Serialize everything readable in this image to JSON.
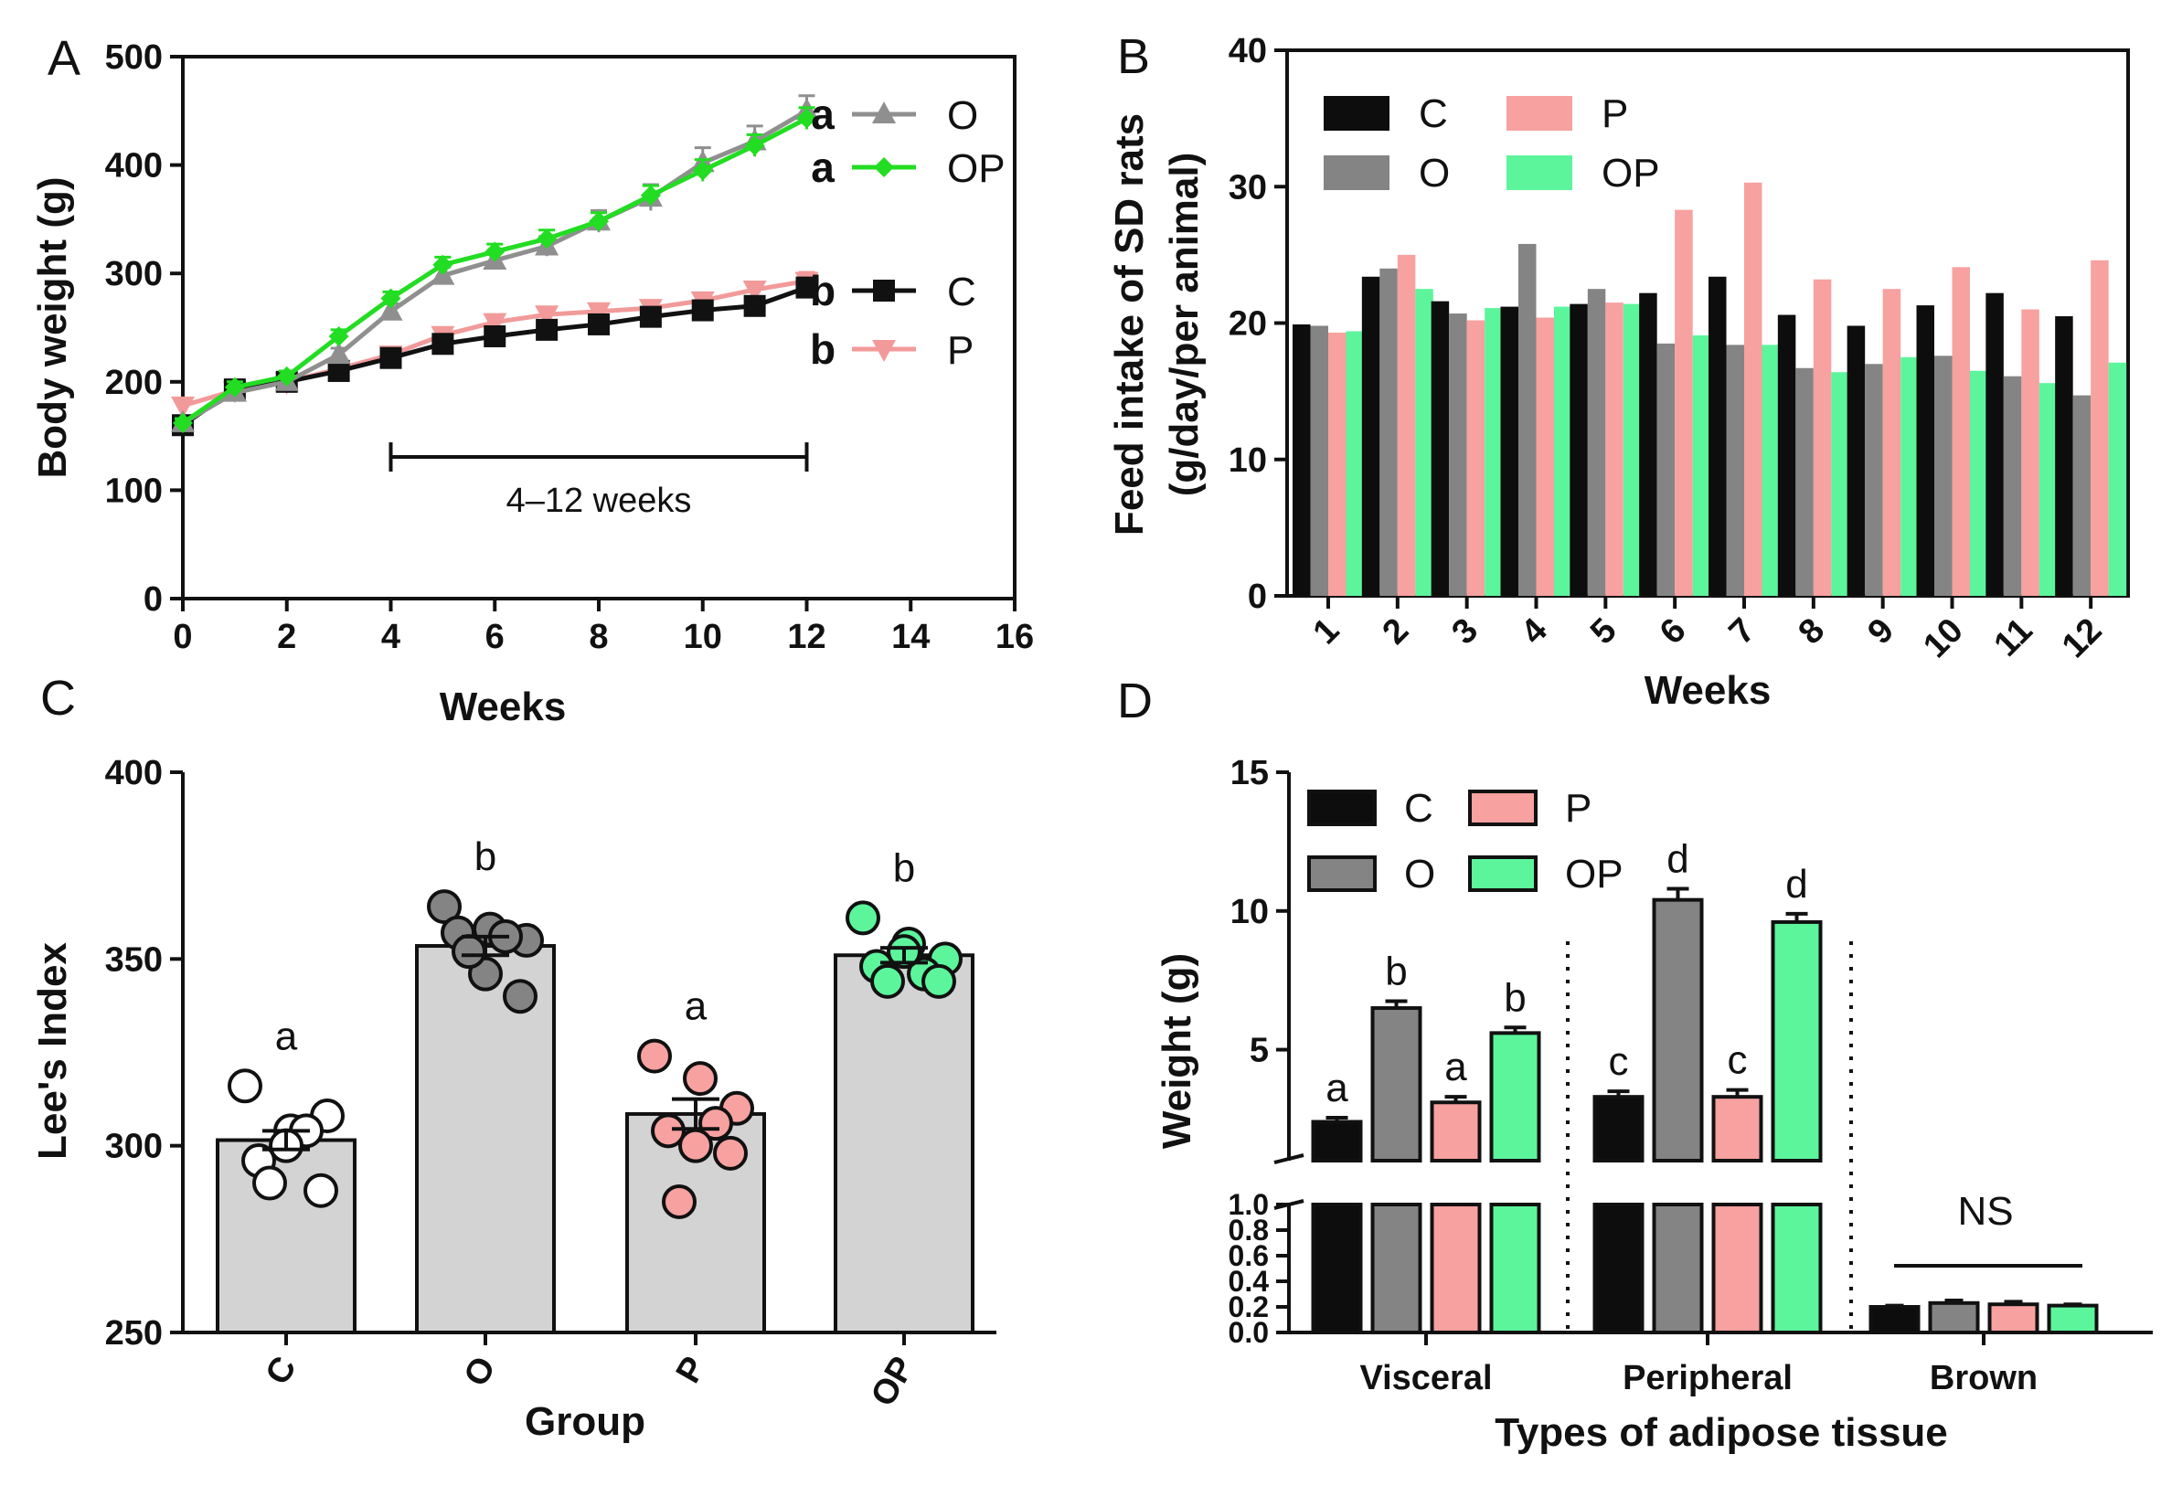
{
  "colors": {
    "C": "#0d0d0d",
    "O": "#848484",
    "P": "#f7a1a0",
    "OP": "#5cf59c",
    "OP_line": "#22dd22",
    "O_line": "#8f8f8f",
    "P_line": "#f29a9a",
    "leeBar": "#d3d3d3",
    "axis": "#111111"
  },
  "chart_data": [
    {
      "panel": "A",
      "type": "line",
      "xlabel": "Weeks",
      "ylabel": "Body weight  (g)",
      "xlim": [
        0,
        16
      ],
      "ylim": [
        0,
        500
      ],
      "xticks": [
        "0",
        "2",
        "4",
        "6",
        "8",
        "10",
        "12",
        "14",
        "16"
      ],
      "yticks": [
        "0",
        "100",
        "200",
        "300",
        "400",
        "500"
      ],
      "x": [
        0,
        1,
        2,
        3,
        4,
        5,
        6,
        7,
        8,
        9,
        10,
        11,
        12
      ],
      "series": [
        {
          "name": "O",
          "letter": "a",
          "marker": "triangle-up",
          "values": [
            162,
            190,
            200,
            225,
            265,
            298,
            312,
            325,
            348,
            370,
            402,
            422,
            450
          ],
          "err": [
            4,
            6,
            5,
            6,
            7,
            8,
            8,
            9,
            10,
            12,
            14,
            14,
            14
          ]
        },
        {
          "name": "OP",
          "letter": "a",
          "marker": "diamond",
          "values": [
            162,
            195,
            205,
            242,
            277,
            308,
            320,
            332,
            348,
            372,
            395,
            418,
            443
          ],
          "err": [
            4,
            5,
            5,
            6,
            6,
            7,
            7,
            8,
            8,
            9,
            10,
            10,
            10
          ]
        },
        {
          "name": "C",
          "letter": "b",
          "marker": "square",
          "values": [
            160,
            193,
            200,
            210,
            222,
            235,
            242,
            248,
            253,
            260,
            266,
            270,
            287
          ],
          "err": [
            4,
            4,
            4,
            4,
            5,
            5,
            5,
            5,
            6,
            6,
            6,
            6,
            7
          ]
        },
        {
          "name": "P",
          "letter": "b",
          "marker": "triangle-down",
          "values": [
            178,
            192,
            200,
            212,
            225,
            243,
            255,
            262,
            265,
            268,
            275,
            285,
            293
          ],
          "err": [
            4,
            5,
            5,
            6,
            6,
            6,
            6,
            6,
            6,
            6,
            6,
            7,
            8
          ]
        }
      ],
      "bracket": {
        "from": 4,
        "to": 12,
        "label": "4–12 weeks"
      }
    },
    {
      "panel": "B",
      "type": "bar",
      "xlabel": "Weeks",
      "ylabel": "Feed intake of SD rats",
      "ylabel2": "(g/day/per animal)",
      "ylim": [
        0,
        40
      ],
      "yticks": [
        "0",
        "10",
        "20",
        "30",
        "40"
      ],
      "categories": [
        "1",
        "2",
        "3",
        "4",
        "5",
        "6",
        "7",
        "8",
        "9",
        "10",
        "11",
        "12"
      ],
      "series": [
        {
          "name": "C",
          "values": [
            19.9,
            23.4,
            21.6,
            21.2,
            21.4,
            22.2,
            23.4,
            20.6,
            19.8,
            21.3,
            22.2,
            20.5
          ]
        },
        {
          "name": "O",
          "values": [
            19.8,
            24.0,
            20.7,
            25.8,
            22.5,
            18.5,
            18.4,
            16.7,
            17.0,
            17.6,
            16.1,
            14.7
          ]
        },
        {
          "name": "P",
          "values": [
            19.3,
            25.0,
            20.2,
            20.4,
            21.5,
            28.3,
            30.3,
            23.2,
            22.5,
            24.1,
            21.0,
            24.6
          ]
        },
        {
          "name": "OP",
          "values": [
            19.4,
            22.5,
            21.1,
            21.2,
            21.4,
            19.1,
            18.4,
            16.4,
            17.5,
            16.5,
            15.6,
            17.1
          ]
        }
      ],
      "legend": [
        "C",
        "O",
        "P",
        "OP"
      ]
    },
    {
      "panel": "C",
      "type": "bar",
      "xlabel": "Group",
      "ylabel": "Lee's Index",
      "ylim": [
        250,
        400
      ],
      "yticks": [
        "250",
        "300",
        "350",
        "400"
      ],
      "categories": [
        "C",
        "O",
        "P",
        "OP"
      ],
      "values": [
        301.5,
        353.5,
        308.5,
        351.0
      ],
      "sem": [
        2.5,
        2.5,
        4.0,
        2.0
      ],
      "letters": [
        "a",
        "b",
        "a",
        "b"
      ],
      "points": [
        [
          316,
          304,
          308,
          304,
          296,
          300,
          288,
          290
        ],
        [
          364,
          358,
          355,
          356,
          357,
          346,
          340,
          352
        ],
        [
          324,
          318,
          310,
          306,
          304,
          300,
          298,
          285
        ],
        [
          361,
          354,
          350,
          346,
          348,
          352,
          344,
          344
        ]
      ]
    },
    {
      "panel": "D",
      "type": "bar",
      "xlabel": "Types of adipose tissue",
      "ylabel": "Weight (g)",
      "axis_break": true,
      "upper_ylim": [
        1.0,
        15
      ],
      "upper_yticks": [
        "5",
        "10",
        "15"
      ],
      "lower_ylim": [
        0.0,
        1.0
      ],
      "lower_yticks": [
        "0.0",
        "0.2",
        "0.4",
        "0.6",
        "0.8",
        "1.0"
      ],
      "categories": [
        "Visceral",
        "Peripheral",
        "Brown"
      ],
      "series": [
        {
          "name": "C",
          "values": [
            2.4,
            3.3,
            0.2
          ],
          "err": [
            0.15,
            0.2,
            0.01
          ]
        },
        {
          "name": "O",
          "values": [
            6.5,
            10.4,
            0.23
          ],
          "err": [
            0.25,
            0.4,
            0.02
          ]
        },
        {
          "name": "P",
          "values": [
            3.1,
            3.3,
            0.22
          ],
          "err": [
            0.2,
            0.25,
            0.02
          ]
        },
        {
          "name": "OP",
          "values": [
            5.6,
            9.6,
            0.21
          ],
          "err": [
            0.2,
            0.3,
            0.01
          ]
        }
      ],
      "letters": [
        [
          "a",
          "b",
          "a",
          "b"
        ],
        [
          "c",
          "d",
          "c",
          "d"
        ]
      ],
      "ns_label": "NS",
      "legend": [
        "C",
        "O",
        "P",
        "OP"
      ]
    }
  ],
  "panel_labels": {
    "A": "A",
    "B": "B",
    "C": "C",
    "D": "D"
  }
}
